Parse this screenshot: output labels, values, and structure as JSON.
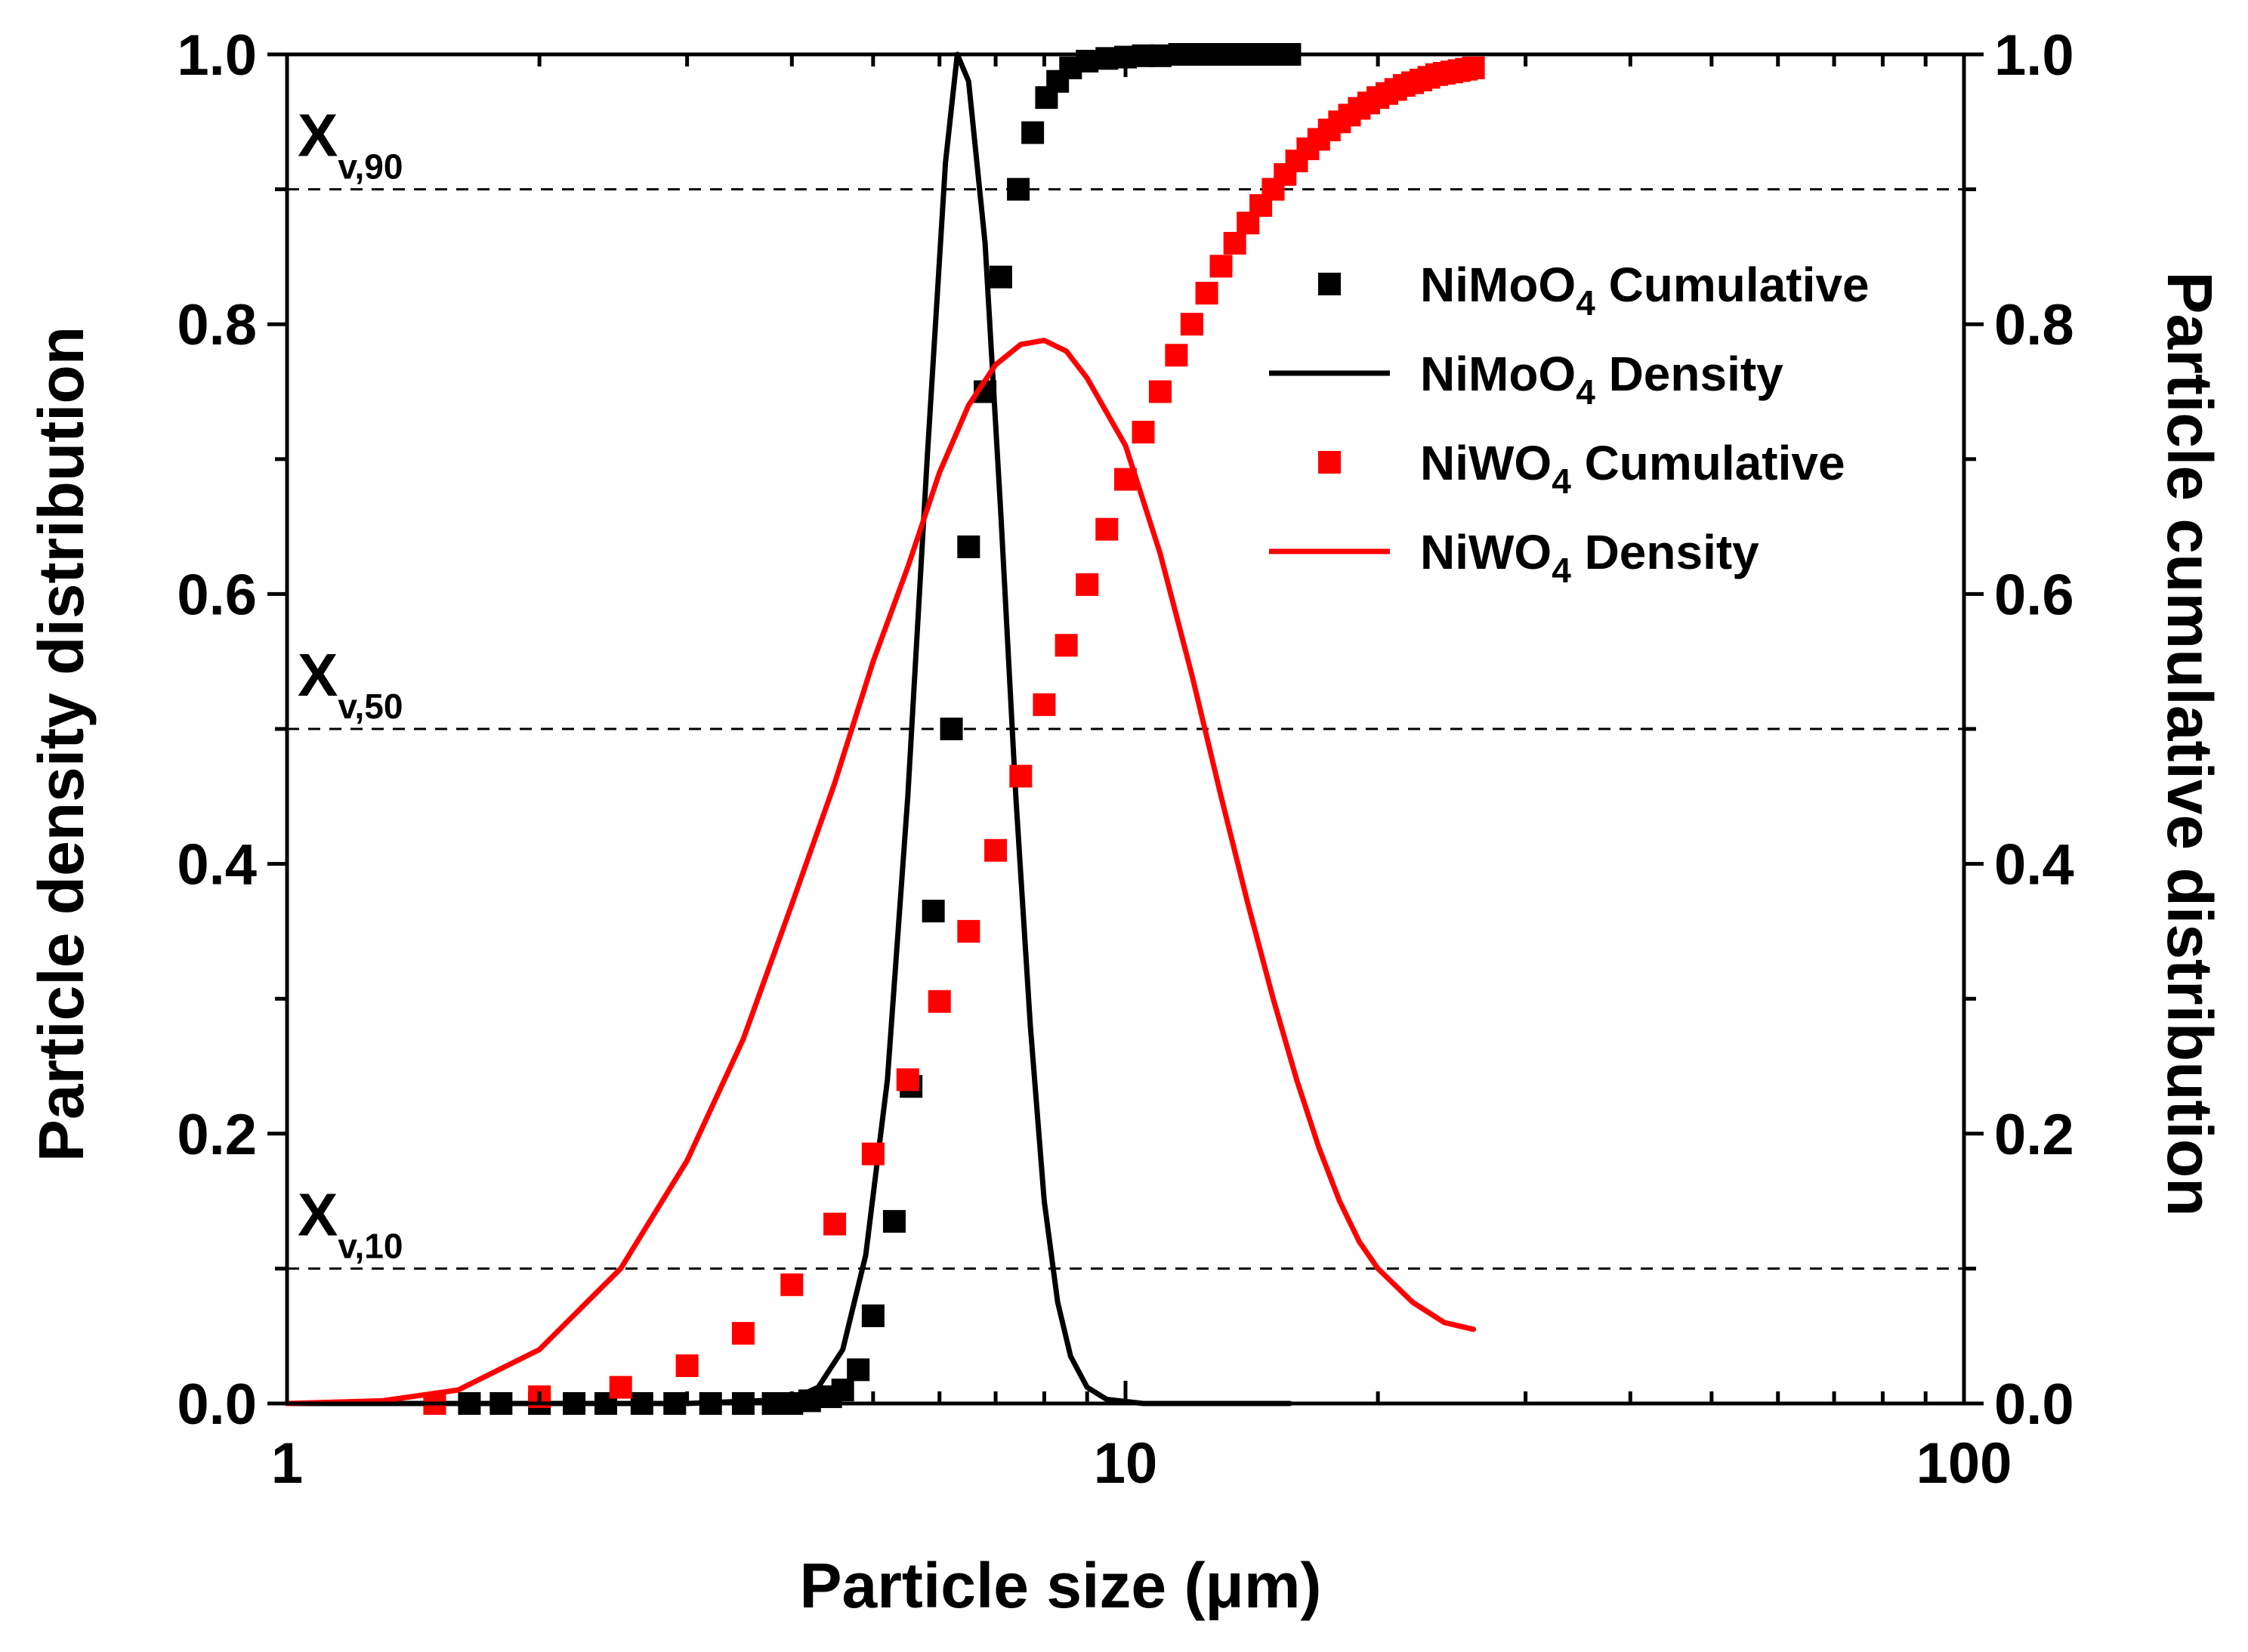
{
  "chart_data": {
    "type": "scatter",
    "xlabel": "Particle size (μm)",
    "ylabel_left": "Particle density distribution",
    "ylabel_right": "Particle cumulative distribution",
    "x_scale": "log",
    "xlim": [
      1,
      100
    ],
    "ylim_left": [
      0,
      1.0
    ],
    "ylim_right": [
      0,
      1.0
    ],
    "x_ticks": [
      1,
      10,
      100
    ],
    "x_tick_labels": [
      "1",
      "10",
      "100"
    ],
    "y_ticks": [
      0,
      0.2,
      0.4,
      0.6,
      0.8,
      1.0
    ],
    "y_tick_labels": [
      "0.0",
      "0.2",
      "0.4",
      "0.6",
      "0.8",
      "1.0"
    ],
    "reference_lines": [
      {
        "y": 0.1,
        "label": "X",
        "sub": "v,10"
      },
      {
        "y": 0.5,
        "label": "X",
        "sub": "v,50"
      },
      {
        "y": 0.9,
        "label": "X",
        "sub": "v,90"
      }
    ],
    "legend": {
      "position": "right",
      "entries": [
        {
          "series": "nimoo4_cum",
          "marker": "square",
          "color": "#000000",
          "pre": "NiMoO",
          "sub": "4",
          "post": " Cumulative"
        },
        {
          "series": "nimoo4_den",
          "marker": "line",
          "color": "#000000",
          "pre": "NiMoO",
          "sub": "4",
          "post": " Density"
        },
        {
          "series": "niwo4_cum",
          "marker": "square",
          "color": "#ff0000",
          "pre": "NiWO",
          "sub": "4",
          "post": " Cumulative"
        },
        {
          "series": "niwo4_den",
          "marker": "line",
          "color": "#ff0000",
          "pre": "NiWO",
          "sub": "4",
          "post": " Density"
        }
      ]
    },
    "series": [
      {
        "id": "nimoo4_cum",
        "name": "NiMoO4 Cumulative",
        "style": "markers",
        "color": "#000000",
        "x": [
          1.5,
          1.65,
          1.8,
          2.0,
          2.2,
          2.4,
          2.65,
          2.9,
          3.2,
          3.5,
          3.8,
          4.0,
          4.2,
          4.45,
          4.6,
          4.8,
          5.0,
          5.3,
          5.55,
          5.9,
          6.2,
          6.5,
          6.8,
          7.1,
          7.45,
          7.75,
          8.05,
          8.3,
          8.6,
          9.0,
          9.5,
          10.0,
          10.5,
          11.0,
          11.6,
          12.2,
          12.8,
          13.5,
          14.2,
          15.0,
          15.7
        ],
        "y": [
          0.0,
          0.0,
          0.0,
          0.0,
          0.0,
          0.0,
          0.0,
          0.0,
          0.0,
          0.0,
          0.0,
          0.0,
          0.002,
          0.005,
          0.01,
          0.025,
          0.065,
          0.135,
          0.235,
          0.365,
          0.5,
          0.635,
          0.75,
          0.835,
          0.9,
          0.942,
          0.968,
          0.98,
          0.99,
          0.995,
          0.997,
          0.998,
          0.999,
          0.999,
          1.0,
          1.0,
          1.0,
          1.0,
          1.0,
          1.0,
          1.0
        ]
      },
      {
        "id": "nimoo4_den",
        "name": "NiMoO4 Density",
        "style": "line",
        "color": "#000000",
        "x": [
          1.0,
          3.0,
          4.0,
          4.3,
          4.6,
          4.9,
          5.2,
          5.5,
          5.8,
          6.1,
          6.3,
          6.5,
          6.8,
          7.1,
          7.4,
          7.7,
          8.0,
          8.3,
          8.6,
          9.0,
          9.5,
          10.5,
          12.0,
          15.7
        ],
        "y": [
          0.0,
          0.0,
          0.003,
          0.012,
          0.04,
          0.11,
          0.24,
          0.45,
          0.7,
          0.92,
          1.0,
          0.98,
          0.86,
          0.66,
          0.45,
          0.28,
          0.15,
          0.075,
          0.035,
          0.012,
          0.003,
          0.0,
          0.0,
          0.0
        ]
      },
      {
        "id": "niwo4_cum",
        "name": "NiWO4 Cumulative",
        "style": "markers",
        "color": "#ff0000",
        "x": [
          1.5,
          2.0,
          2.5,
          3.0,
          3.5,
          4.0,
          4.5,
          5.0,
          5.5,
          6.0,
          6.5,
          7.0,
          7.5,
          8.0,
          8.5,
          9.0,
          9.5,
          10.0,
          10.5,
          11.0,
          11.5,
          12.0,
          12.5,
          13.0,
          13.5,
          14.0,
          14.5,
          15.0,
          15.5,
          16.0,
          16.5,
          17.0,
          17.5,
          18.0,
          18.5,
          19.0,
          19.5,
          20.0,
          20.5,
          21.0,
          21.5,
          22.0,
          22.5,
          23.0,
          23.5,
          24.0,
          24.5,
          25.0,
          25.5,
          26.0
        ],
        "y": [
          0.0,
          0.005,
          0.012,
          0.028,
          0.052,
          0.088,
          0.133,
          0.185,
          0.24,
          0.298,
          0.35,
          0.41,
          0.465,
          0.518,
          0.562,
          0.607,
          0.648,
          0.685,
          0.72,
          0.75,
          0.777,
          0.8,
          0.823,
          0.843,
          0.86,
          0.875,
          0.888,
          0.9,
          0.911,
          0.921,
          0.93,
          0.937,
          0.944,
          0.95,
          0.955,
          0.96,
          0.964,
          0.968,
          0.971,
          0.974,
          0.977,
          0.979,
          0.981,
          0.983,
          0.985,
          0.986,
          0.987,
          0.988,
          0.989,
          0.99
        ]
      },
      {
        "id": "niwo4_den",
        "name": "NiWO4 Density",
        "style": "line",
        "color": "#ff0000",
        "x": [
          1.0,
          1.3,
          1.6,
          2.0,
          2.5,
          3.0,
          3.5,
          4.0,
          4.5,
          5.0,
          5.5,
          6.0,
          6.5,
          7.0,
          7.5,
          8.0,
          8.5,
          9.0,
          10.0,
          11.0,
          12.0,
          13.0,
          14.0,
          15.0,
          16.0,
          17.0,
          18.0,
          19.0,
          20.0,
          22.0,
          24.0,
          26.0
        ],
        "y": [
          0.0,
          0.002,
          0.01,
          0.04,
          0.1,
          0.18,
          0.27,
          0.37,
          0.46,
          0.55,
          0.62,
          0.69,
          0.74,
          0.77,
          0.785,
          0.788,
          0.78,
          0.76,
          0.71,
          0.63,
          0.54,
          0.45,
          0.37,
          0.3,
          0.24,
          0.19,
          0.15,
          0.12,
          0.1,
          0.075,
          0.06,
          0.055
        ]
      }
    ]
  }
}
